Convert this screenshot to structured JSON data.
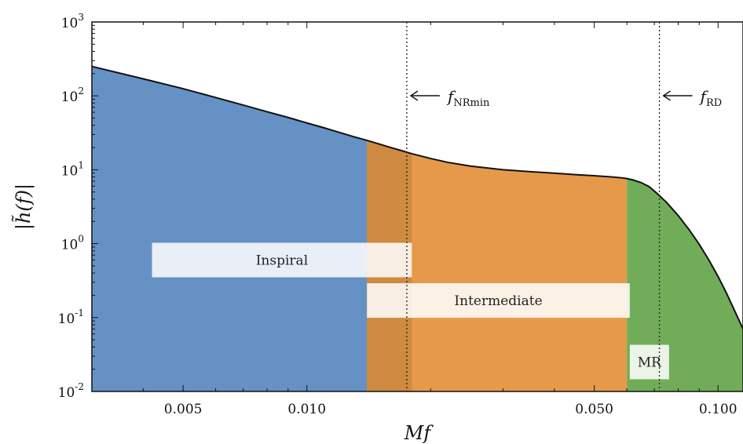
{
  "chart_data": {
    "type": "area",
    "xlabel": "Mf",
    "ylabel": "|h̃(f)|",
    "xscale": "log",
    "yscale": "log",
    "xlim": [
      0.003,
      0.115
    ],
    "ylim": [
      0.01,
      1000
    ],
    "grid": false,
    "x_ticks": [
      {
        "value": 0.005,
        "label": "0.005"
      },
      {
        "value": 0.01,
        "label": "0.010"
      },
      {
        "value": 0.05,
        "label": "0.050"
      },
      {
        "value": 0.1,
        "label": "0.100"
      }
    ],
    "y_ticks": [
      {
        "value": 0.01,
        "base": "10",
        "exp": "-2"
      },
      {
        "value": 0.1,
        "base": "10",
        "exp": "-1"
      },
      {
        "value": 1,
        "base": "10",
        "exp": "0"
      },
      {
        "value": 10,
        "base": "10",
        "exp": "1"
      },
      {
        "value": 100,
        "base": "10",
        "exp": "2"
      },
      {
        "value": 1000,
        "base": "10",
        "exp": "3"
      }
    ],
    "curve": {
      "x": [
        0.003,
        0.004,
        0.005,
        0.006,
        0.007,
        0.008,
        0.009,
        0.01,
        0.011,
        0.012,
        0.013,
        0.014,
        0.016,
        0.018,
        0.02,
        0.022,
        0.025,
        0.03,
        0.035,
        0.04,
        0.045,
        0.05,
        0.055,
        0.058,
        0.06,
        0.062,
        0.065,
        0.068,
        0.071,
        0.075,
        0.08,
        0.085,
        0.09,
        0.095,
        0.1,
        0.105,
        0.11,
        0.115
      ],
      "y": [
        250,
        170,
        125,
        95,
        75,
        61,
        51,
        43,
        37,
        32,
        28,
        25,
        20,
        16.5,
        14.2,
        12.6,
        11.2,
        10.0,
        9.4,
        9.0,
        8.6,
        8.3,
        8.0,
        7.8,
        7.6,
        7.3,
        6.7,
        5.9,
        4.8,
        3.6,
        2.4,
        1.55,
        0.98,
        0.6,
        0.36,
        0.21,
        0.12,
        0.07
      ]
    },
    "regions": [
      {
        "name": "Inspiral",
        "x_start": 0.003,
        "x_end": 0.018,
        "color": "#6591c4"
      },
      {
        "name": "Intermediate",
        "x_start": 0.014,
        "x_end": 0.06,
        "color": "#e69a49"
      },
      {
        "name": "MR",
        "x_start": 0.06,
        "x_end": 0.115,
        "color": "#71ad58"
      }
    ],
    "overlap_color": "#cf8a41",
    "labels": [
      {
        "text": "Inspiral",
        "x_start": 0.0042,
        "x_end": 0.018,
        "y": 0.6
      },
      {
        "text": "Intermediate",
        "x_start": 0.014,
        "x_end": 0.061,
        "y": 0.17
      },
      {
        "text": "MR",
        "x_start": 0.061,
        "x_end": 0.076,
        "y": 0.025
      }
    ],
    "vlines": [
      {
        "x": 0.0175,
        "name": "f",
        "sub": "NRmin"
      },
      {
        "x": 0.072,
        "name": "f",
        "sub": "RD"
      }
    ]
  }
}
